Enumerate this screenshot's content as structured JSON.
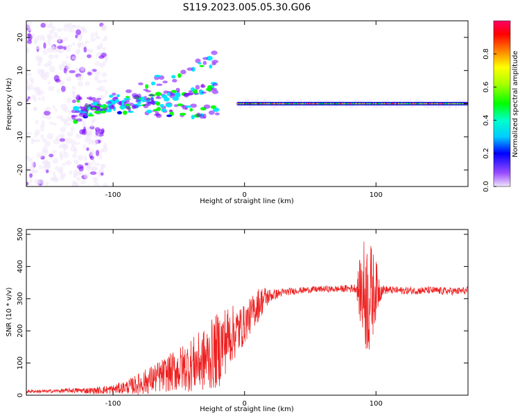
{
  "title": "S119.2023.005.05.30.G06",
  "chart_data": [
    {
      "type": "heatmap",
      "xlabel": "Height of straight line (km)",
      "ylabel": "Frequency (Hz)",
      "xlim": [
        -166,
        170
      ],
      "ylim": [
        -25,
        25
      ],
      "xticks": [
        -100,
        0,
        100
      ],
      "yticks": [
        -20,
        -10,
        0,
        10,
        20
      ],
      "colorbar": {
        "label": "Normalized spectral amplitude",
        "range": [
          0.0,
          1.0
        ],
        "ticks": [
          0.0,
          0.2,
          0.4,
          0.6,
          0.8
        ],
        "colormap": [
          "#f0e6fa",
          "#7a00ff",
          "#0000ff",
          "#00e5ff",
          "#00ff00",
          "#ffff00",
          "#ff8000",
          "#ff0000",
          "#ff0066"
        ]
      },
      "features": {
        "noise_region_x": [
          -166,
          -105
        ],
        "chirp_region_x": [
          -130,
          -20
        ],
        "stable_line_x": [
          -5,
          170
        ],
        "stable_line_freq": 0
      }
    },
    {
      "type": "line",
      "xlabel": "Height of straight line (km)",
      "ylabel": "SNR (10 * v/v)",
      "xlim": [
        -166,
        170
      ],
      "ylim": [
        0,
        515
      ],
      "xticks": [
        -100,
        0,
        100
      ],
      "yticks": [
        0,
        100,
        200,
        300,
        400,
        500
      ],
      "series": [
        {
          "name": "SNR",
          "color": "#ee2020",
          "x": [
            -166,
            -150,
            -130,
            -115,
            -100,
            -90,
            -80,
            -70,
            -60,
            -50,
            -40,
            -30,
            -20,
            -15,
            -10,
            -5,
            0,
            5,
            10,
            15,
            20,
            25,
            30,
            40,
            50,
            60,
            70,
            80,
            85,
            90,
            95,
            100,
            105,
            110,
            120,
            130,
            140,
            150,
            160,
            170
          ],
          "values": [
            12,
            12,
            15,
            14,
            18,
            25,
            35,
            50,
            65,
            80,
            95,
            110,
            140,
            170,
            190,
            200,
            220,
            250,
            280,
            300,
            310,
            315,
            320,
            325,
            328,
            330,
            330,
            332,
            333,
            320,
            300,
            330,
            328,
            327,
            325,
            325,
            326,
            324,
            323,
            325
          ],
          "amplitude": [
            5,
            5,
            8,
            10,
            15,
            20,
            35,
            45,
            55,
            70,
            85,
            100,
            120,
            110,
            90,
            80,
            60,
            55,
            55,
            40,
            20,
            15,
            12,
            10,
            10,
            10,
            10,
            12,
            15,
            170,
            190,
            90,
            15,
            12,
            12,
            12,
            12,
            12,
            12,
            12
          ]
        }
      ]
    }
  ]
}
